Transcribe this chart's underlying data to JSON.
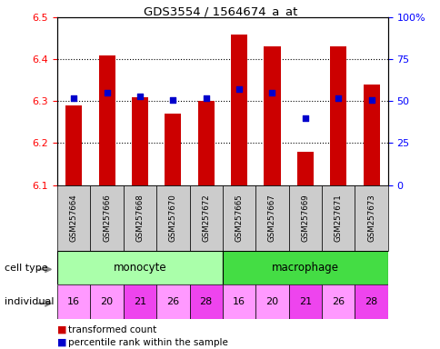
{
  "title": "GDS3554 / 1564674_a_at",
  "samples": [
    "GSM257664",
    "GSM257666",
    "GSM257668",
    "GSM257670",
    "GSM257672",
    "GSM257665",
    "GSM257667",
    "GSM257669",
    "GSM257671",
    "GSM257673"
  ],
  "transformed_count": [
    6.29,
    6.41,
    6.31,
    6.27,
    6.3,
    6.46,
    6.43,
    6.18,
    6.43,
    6.34
  ],
  "percentile_rank": [
    52,
    55,
    53,
    51,
    52,
    57,
    55,
    40,
    52,
    51
  ],
  "cell_types": [
    "monocyte",
    "monocyte",
    "monocyte",
    "monocyte",
    "monocyte",
    "macrophage",
    "macrophage",
    "macrophage",
    "macrophage",
    "macrophage"
  ],
  "individuals": [
    "16",
    "20",
    "21",
    "26",
    "28",
    "16",
    "20",
    "21",
    "26",
    "28"
  ],
  "ylim_left": [
    6.1,
    6.5
  ],
  "ylim_right": [
    0,
    100
  ],
  "yticks_left": [
    6.1,
    6.2,
    6.3,
    6.4,
    6.5
  ],
  "yticks_right": [
    0,
    25,
    50,
    75,
    100
  ],
  "ytick_labels_right": [
    "0",
    "25",
    "50",
    "75",
    "100%"
  ],
  "bar_color": "#cc0000",
  "dot_color": "#0000cc",
  "bar_width": 0.5,
  "monocyte_color": "#aaffaa",
  "macrophage_color": "#44dd44",
  "ind_color_light": "#ff99ff",
  "ind_color_dark": "#ee44ee",
  "ind_colors_by_id": {
    "16": "#ff99ff",
    "20": "#ff99ff",
    "21": "#ee44ee",
    "26": "#ff99ff",
    "28": "#ee44ee"
  },
  "cell_type_label": "cell type",
  "individual_label": "individual",
  "legend_red": "transformed count",
  "legend_blue": "percentile rank within the sample",
  "sample_bg_color": "#cccccc",
  "grid_dotted_values": [
    6.2,
    6.3,
    6.4
  ]
}
